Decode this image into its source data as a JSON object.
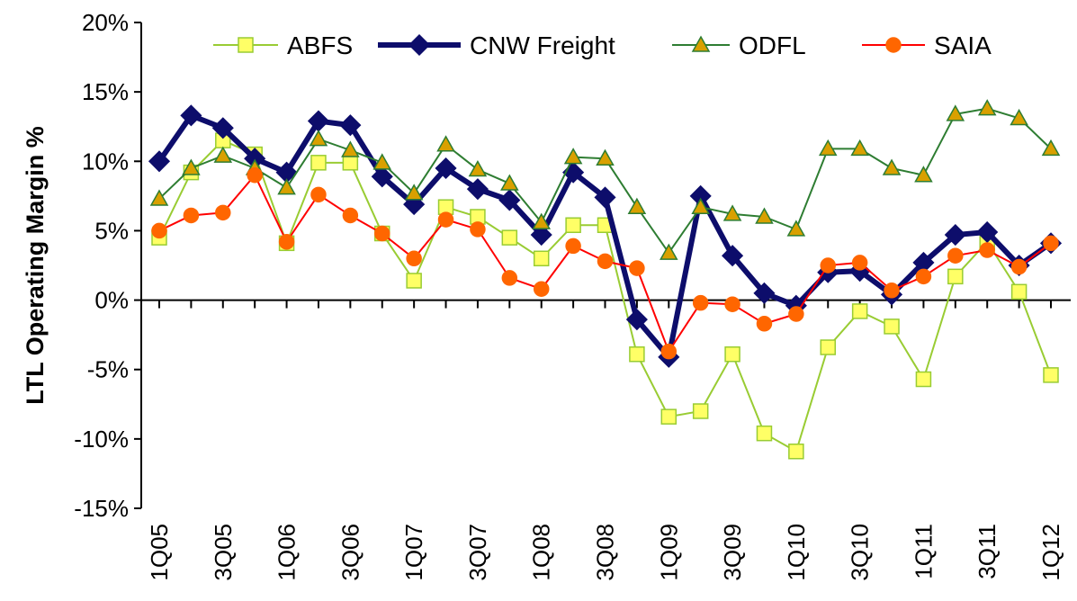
{
  "chart_data": {
    "type": "line",
    "y_label": "LTL Operating Margin %",
    "categories": [
      "1Q05",
      null,
      "3Q05",
      null,
      "1Q06",
      null,
      "3Q06",
      null,
      "1Q07",
      null,
      "3Q07",
      null,
      "1Q08",
      null,
      "3Q08",
      null,
      "1Q09",
      null,
      "3Q09",
      null,
      "1Q10",
      null,
      "3Q10",
      null,
      "1Q11",
      null,
      "3Q11",
      null,
      "1Q12"
    ],
    "series": [
      {
        "name": "ABFS",
        "color": "#99cc33",
        "marker_color": "#ffff66",
        "values": [
          4.5,
          9.2,
          11.5,
          10.5,
          4.1,
          9.9,
          9.9,
          4.8,
          1.4,
          6.7,
          6.0,
          4.5,
          3.0,
          5.4,
          5.4,
          -3.9,
          -8.4,
          -8.0,
          -3.9,
          -9.6,
          -10.9,
          -3.4,
          -0.8,
          -1.9,
          -5.7,
          1.7,
          4.2,
          0.6,
          -5.4
        ]
      },
      {
        "name": "CNW Freight",
        "color": "#0d0d6b",
        "marker_color": "#0d0d6b",
        "values": [
          10.0,
          13.3,
          12.4,
          10.2,
          9.2,
          12.9,
          12.6,
          8.9,
          6.9,
          9.5,
          8.0,
          7.2,
          4.7,
          9.2,
          7.4,
          -1.4,
          -4.1,
          7.5,
          3.2,
          0.5,
          -0.4,
          2.0,
          2.1,
          0.4,
          2.7,
          4.7,
          4.9,
          2.5,
          4.1
        ]
      },
      {
        "name": "ODFL",
        "color": "#2e7d32",
        "marker_color": "#d9a000",
        "values": [
          7.3,
          9.5,
          10.4,
          9.5,
          8.1,
          11.6,
          10.8,
          9.9,
          7.7,
          11.2,
          9.4,
          8.4,
          5.6,
          10.3,
          10.2,
          6.7,
          3.4,
          6.7,
          6.2,
          6.0,
          5.1,
          10.9,
          10.9,
          9.5,
          9.0,
          13.4,
          13.8,
          13.1,
          10.9
        ]
      },
      {
        "name": "SAIA",
        "color": "#ff0000",
        "marker_color": "#ff6600",
        "values": [
          5.0,
          6.1,
          6.3,
          9.0,
          4.2,
          7.6,
          6.1,
          4.8,
          3.0,
          5.8,
          5.1,
          1.6,
          0.8,
          3.9,
          2.8,
          2.3,
          -3.7,
          -0.2,
          -0.3,
          -1.7,
          -1.0,
          2.5,
          2.7,
          0.7,
          1.7,
          3.2,
          3.6,
          2.4,
          4.1
        ]
      }
    ],
    "ylim": [
      -15,
      20
    ],
    "yticks": [
      {
        "value": -15,
        "label": "-15%"
      },
      {
        "value": -10,
        "label": "-10%"
      },
      {
        "value": -5,
        "label": "-5%"
      },
      {
        "value": 0,
        "label": "0%"
      },
      {
        "value": 5,
        "label": "5%"
      },
      {
        "value": 10,
        "label": "10%"
      },
      {
        "value": 15,
        "label": "15%"
      },
      {
        "value": 20,
        "label": "20%"
      }
    ]
  }
}
